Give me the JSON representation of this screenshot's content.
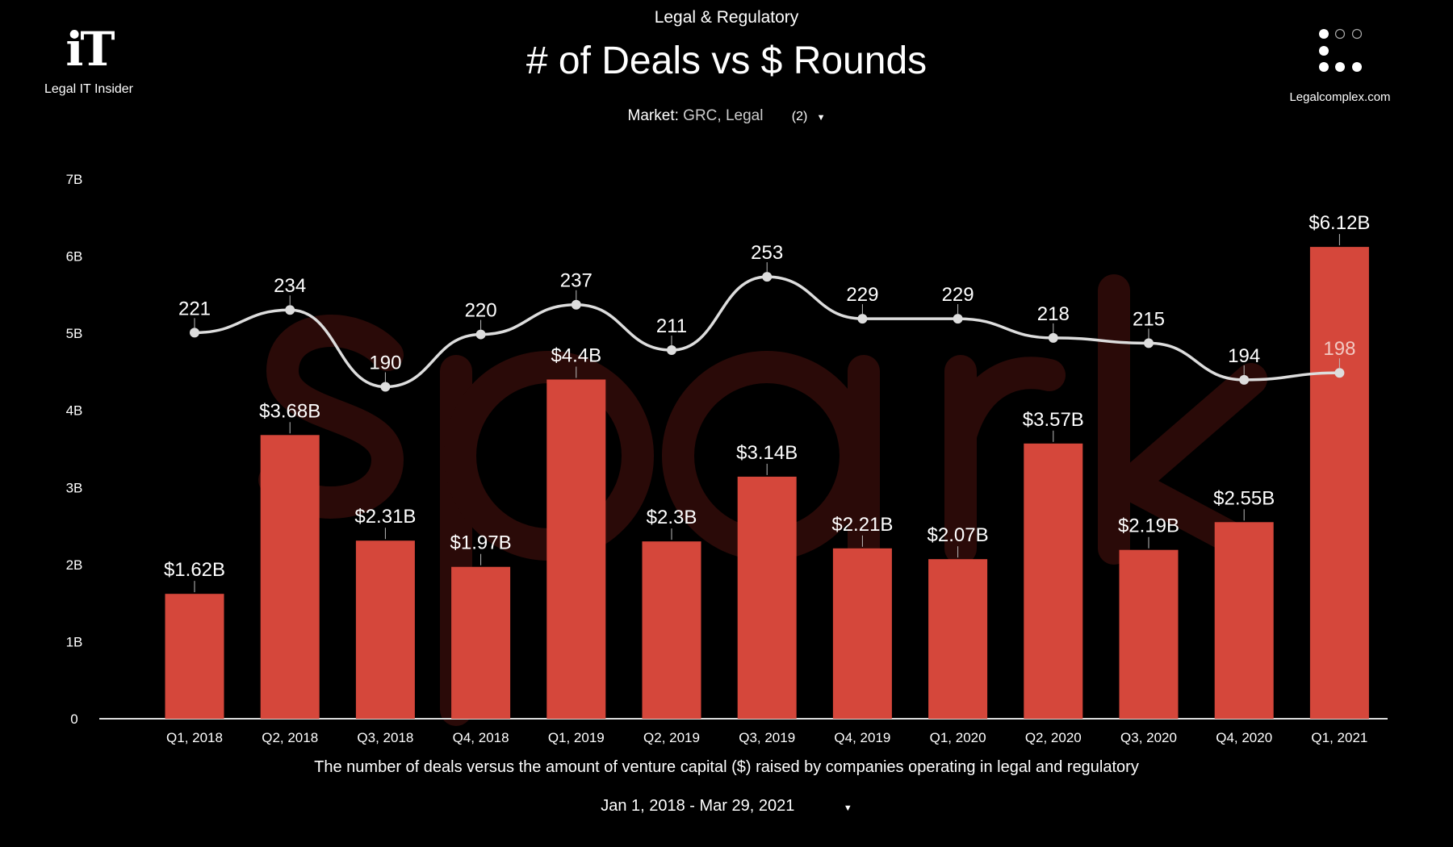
{
  "header": {
    "supertitle": "Legal & Regulatory",
    "title": "# of Deals vs $ Rounds",
    "left_logo": {
      "mark": "iT",
      "name": "Legal IT Insider"
    },
    "right_logo": {
      "name": "Legalcomplex.com"
    },
    "filter": {
      "label": "Market:",
      "value": "GRC, Legal",
      "count": "(2)"
    }
  },
  "footer": {
    "caption": "The number of deals versus the amount of venture capital ($) raised by companies operating in legal and regulatory",
    "date_range": "Jan 1, 2018 - Mar 29, 2021"
  },
  "watermark": "spark",
  "colors": {
    "bar": "#d5473b",
    "line": "#dddddd",
    "background": "#000000"
  },
  "chart_data": {
    "type": "bar+line",
    "title": "# of Deals vs $ Rounds",
    "categories": [
      "Q1, 2018",
      "Q2, 2018",
      "Q3, 2018",
      "Q4, 2018",
      "Q1, 2019",
      "Q2, 2019",
      "Q3, 2019",
      "Q4, 2019",
      "Q1, 2020",
      "Q2, 2020",
      "Q3, 2020",
      "Q4, 2020",
      "Q1, 2021"
    ],
    "series": [
      {
        "name": "$ Rounds",
        "type": "bar",
        "unit": "B USD",
        "values": [
          1.62,
          3.68,
          2.31,
          1.97,
          4.4,
          2.3,
          3.14,
          2.21,
          2.07,
          3.57,
          2.19,
          2.55,
          6.12
        ],
        "labels": [
          "$1.62B",
          "$3.68B",
          "$2.31B",
          "$1.97B",
          "$4.4B",
          "$2.3B",
          "$3.14B",
          "$2.21B",
          "$2.07B",
          "$3.57B",
          "$2.19B",
          "$2.55B",
          "$6.12B"
        ]
      },
      {
        "name": "# of Deals",
        "type": "line",
        "values": [
          221,
          234,
          190,
          220,
          237,
          211,
          253,
          229,
          229,
          218,
          215,
          194,
          198
        ],
        "labels": [
          "221",
          "234",
          "190",
          "220",
          "237",
          "211",
          "253",
          "229",
          "229",
          "218",
          "215",
          "194",
          "198"
        ]
      }
    ],
    "y_ticks": [
      "0",
      "1B",
      "2B",
      "3B",
      "4B",
      "5B",
      "6B",
      "7B"
    ],
    "ylim": [
      0,
      7
    ],
    "y2lim": [
      0,
      320
    ],
    "grid": false,
    "legend": "none"
  }
}
